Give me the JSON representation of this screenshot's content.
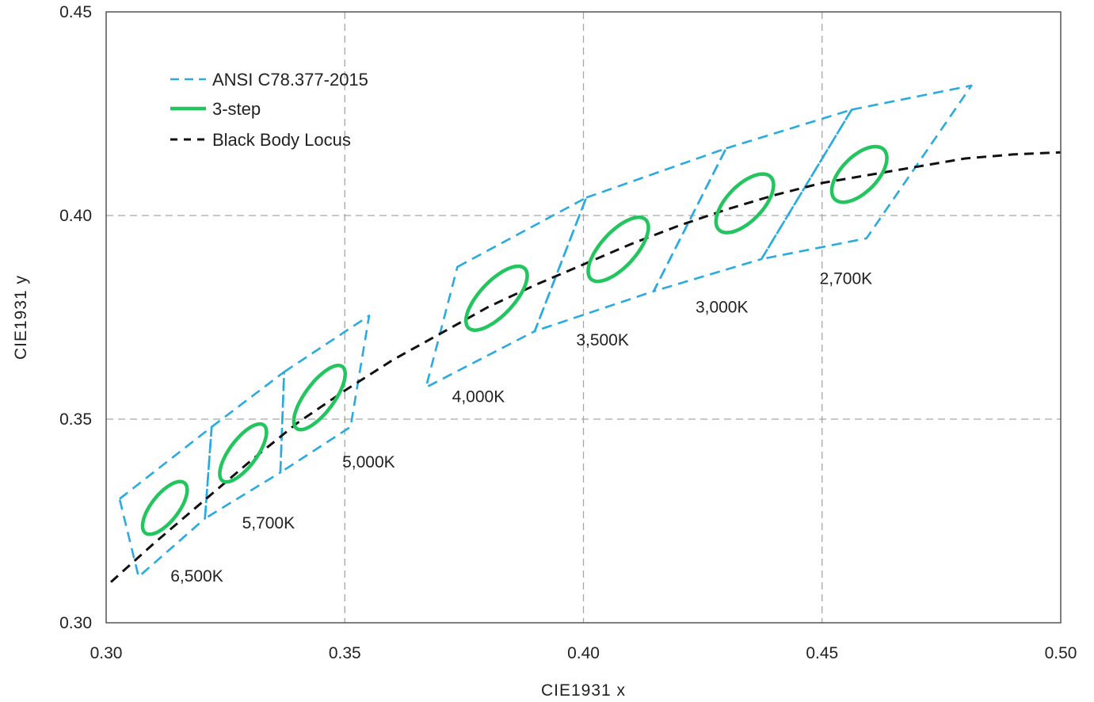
{
  "chart_data": {
    "type": "scatter",
    "title": "",
    "xlabel": "CIE1931 x",
    "ylabel": "CIE1931 y",
    "xlim": [
      0.3,
      0.5
    ],
    "ylim": [
      0.3,
      0.45
    ],
    "x_ticks": [
      "0.30",
      "0.35",
      "0.40",
      "0.45",
      "0.50"
    ],
    "y_ticks": [
      "0.30",
      "0.35",
      "0.40",
      "0.45"
    ],
    "x_tick_values": [
      0.3,
      0.35,
      0.4,
      0.45,
      0.5
    ],
    "y_tick_values": [
      0.3,
      0.35,
      0.4,
      0.45
    ],
    "grid": true,
    "legend_position": "top-left",
    "legend": [
      {
        "label": "ANSI C78.377-2015",
        "style": "dashed",
        "color": "#29abe2"
      },
      {
        "label": "3-step",
        "style": "solid",
        "color": "#22c55e"
      },
      {
        "label": "Black Body Locus",
        "style": "dashed",
        "color": "#111111"
      }
    ],
    "colors": {
      "ansi": "#29abe2",
      "ellipse": "#22c55e",
      "locus": "#111111",
      "grid": "#a6a6a6",
      "axis": "#555555"
    },
    "black_body_locus": [
      [
        0.301,
        0.31
      ],
      [
        0.31,
        0.3195
      ],
      [
        0.32,
        0.3295
      ],
      [
        0.33,
        0.3395
      ],
      [
        0.34,
        0.349
      ],
      [
        0.35,
        0.357
      ],
      [
        0.36,
        0.3645
      ],
      [
        0.37,
        0.371
      ],
      [
        0.38,
        0.3775
      ],
      [
        0.39,
        0.383
      ],
      [
        0.4,
        0.388
      ],
      [
        0.41,
        0.393
      ],
      [
        0.42,
        0.3975
      ],
      [
        0.43,
        0.4015
      ],
      [
        0.44,
        0.405
      ],
      [
        0.45,
        0.408
      ],
      [
        0.46,
        0.41
      ],
      [
        0.47,
        0.412
      ],
      [
        0.48,
        0.414
      ],
      [
        0.49,
        0.415
      ],
      [
        0.5,
        0.4155
      ]
    ],
    "ansi_quads": [
      {
        "name": "6500K",
        "points": [
          [
            0.3028,
            0.3304
          ],
          [
            0.3221,
            0.3481
          ],
          [
            0.3207,
            0.3256
          ],
          [
            0.3068,
            0.3113
          ]
        ]
      },
      {
        "name": "5700K",
        "points": [
          [
            0.3221,
            0.3481
          ],
          [
            0.3373,
            0.3616
          ],
          [
            0.3365,
            0.3369
          ],
          [
            0.3207,
            0.3256
          ]
        ]
      },
      {
        "name": "5000K",
        "points": [
          [
            0.3373,
            0.3616
          ],
          [
            0.3551,
            0.3754
          ],
          [
            0.3512,
            0.3481
          ],
          [
            0.3365,
            0.3369
          ]
        ]
      },
      {
        "name": "4000K",
        "points": [
          [
            0.3736,
            0.3874
          ],
          [
            0.4006,
            0.4044
          ],
          [
            0.3898,
            0.3716
          ],
          [
            0.367,
            0.3578
          ]
        ]
      },
      {
        "name": "3500K",
        "points": [
          [
            0.4006,
            0.4044
          ],
          [
            0.4299,
            0.4165
          ],
          [
            0.4147,
            0.3814
          ],
          [
            0.3898,
            0.3716
          ]
        ]
      },
      {
        "name": "3000K",
        "points": [
          [
            0.4299,
            0.4165
          ],
          [
            0.4562,
            0.426
          ],
          [
            0.4373,
            0.3893
          ],
          [
            0.4147,
            0.3814
          ]
        ]
      },
      {
        "name": "2700K",
        "points": [
          [
            0.4562,
            0.426
          ],
          [
            0.4813,
            0.4319
          ],
          [
            0.4593,
            0.3944
          ],
          [
            0.4373,
            0.3893
          ]
        ]
      }
    ],
    "ellipses": [
      {
        "cct": "6500K",
        "cx": 0.3123,
        "cy": 0.3282,
        "a": 0.0074,
        "b": 0.003,
        "angle_deg": 58
      },
      {
        "cct": "5700K",
        "cx": 0.3287,
        "cy": 0.3417,
        "a": 0.0081,
        "b": 0.003,
        "angle_deg": 59
      },
      {
        "cct": "5000K",
        "cx": 0.3447,
        "cy": 0.3553,
        "a": 0.009,
        "b": 0.0032,
        "angle_deg": 59
      },
      {
        "cct": "4000K",
        "cx": 0.3818,
        "cy": 0.3797,
        "a": 0.0094,
        "b": 0.0038,
        "angle_deg": 53
      },
      {
        "cct": "3500K",
        "cx": 0.4073,
        "cy": 0.3917,
        "a": 0.0093,
        "b": 0.0039,
        "angle_deg": 54
      },
      {
        "cct": "3000K",
        "cx": 0.4338,
        "cy": 0.403,
        "a": 0.0085,
        "b": 0.004,
        "angle_deg": 53
      },
      {
        "cct": "2700K",
        "cx": 0.4578,
        "cy": 0.4101,
        "a": 0.008,
        "b": 0.004,
        "angle_deg": 53
      }
    ],
    "cct_labels": [
      {
        "text": "6,500K",
        "x": 0.319,
        "y": 0.3115
      },
      {
        "text": "5,700K",
        "x": 0.334,
        "y": 0.3245
      },
      {
        "text": "5,000K",
        "x": 0.355,
        "y": 0.3395
      },
      {
        "text": "4,000K",
        "x": 0.378,
        "y": 0.3555
      },
      {
        "text": "3,500K",
        "x": 0.404,
        "y": 0.3695
      },
      {
        "text": "3,000K",
        "x": 0.429,
        "y": 0.3775
      },
      {
        "text": "2,700K",
        "x": 0.455,
        "y": 0.3845
      }
    ]
  }
}
